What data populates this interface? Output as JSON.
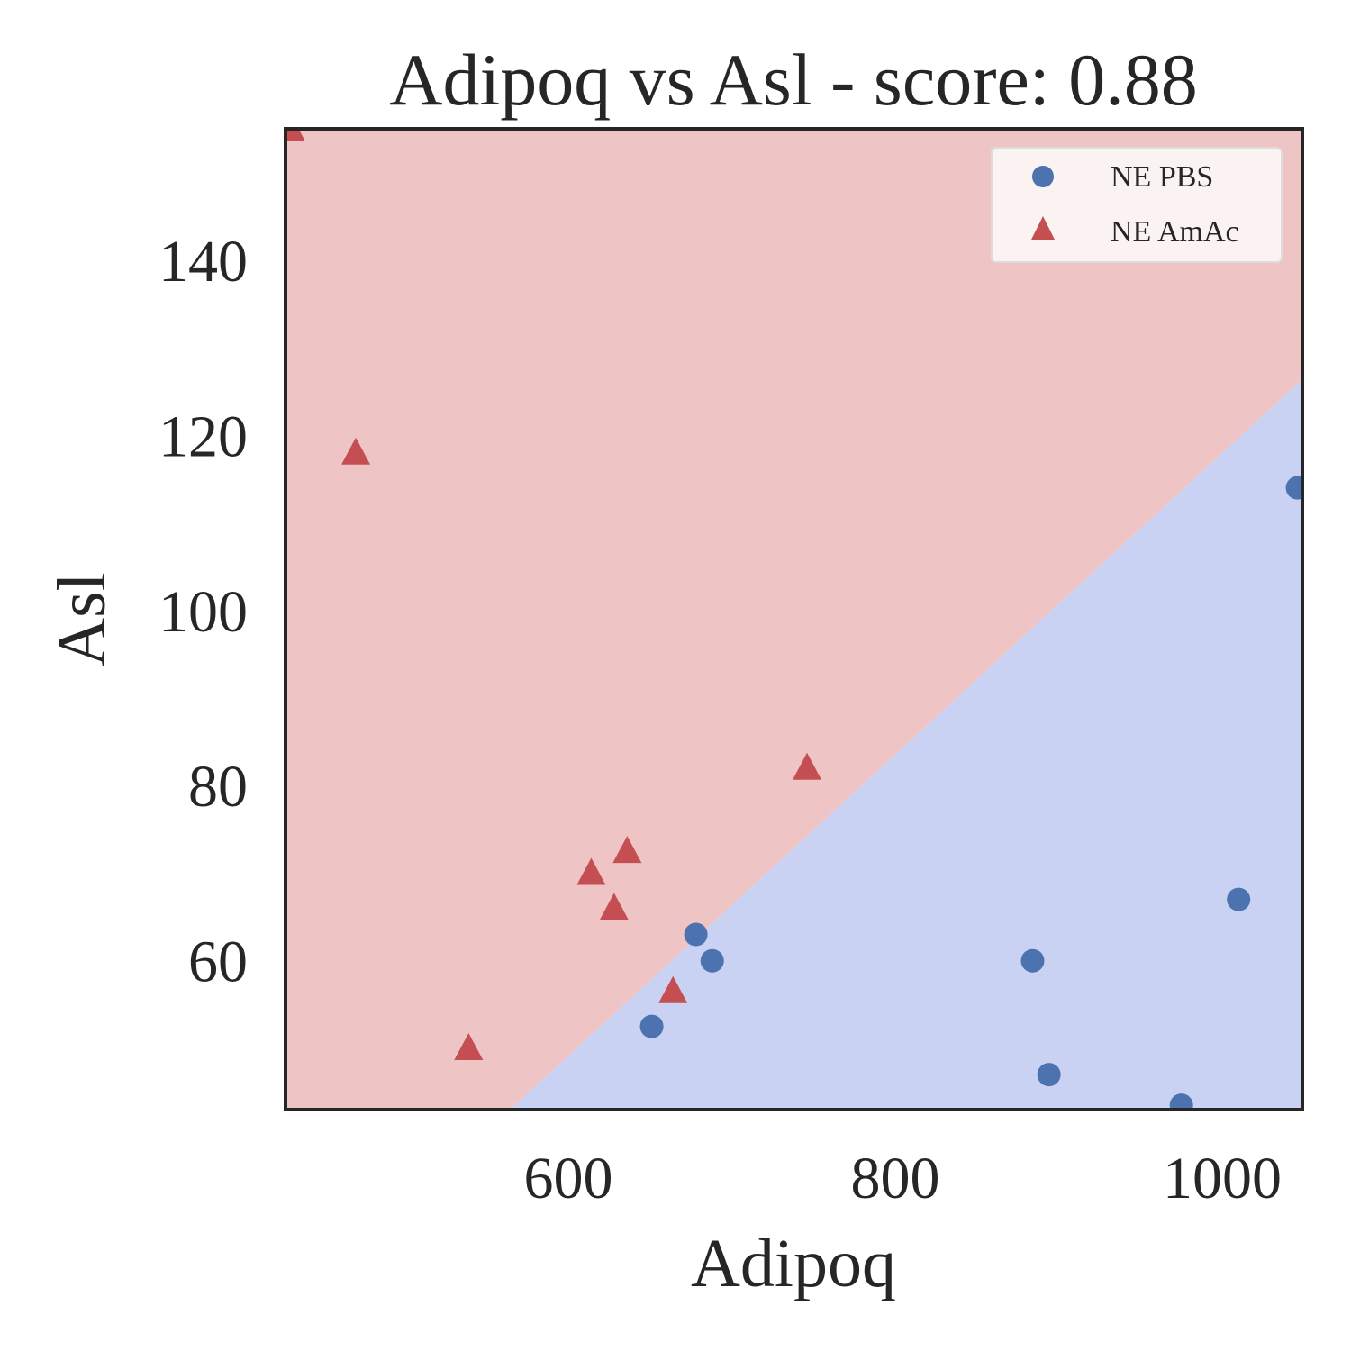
{
  "chart_data": {
    "type": "scatter",
    "title": "Adipoq vs Asl - score: 0.88",
    "xlabel": "Adipoq",
    "ylabel": "Asl",
    "xlim": [
      427,
      1049
    ],
    "ylim": [
      43,
      155
    ],
    "xticks": [
      600,
      800,
      1000
    ],
    "yticks": [
      60,
      80,
      100,
      120,
      140
    ],
    "grid": false,
    "legend_position": "top-right",
    "decision_boundary": {
      "points": [
        [
          564.4,
          43
        ],
        [
          1049,
          126.4
        ]
      ],
      "region_colors": {
        "NE AmAc": "#eec4c4",
        "NE PBS": "#c9d2f2"
      }
    },
    "series": [
      {
        "name": "NE PBS",
        "marker": "circle",
        "color": "#4c72b0",
        "points": [
          [
            1046,
            114
          ],
          [
            1010,
            67
          ],
          [
            884,
            60
          ],
          [
            894,
            47
          ],
          [
            975,
            43.5
          ],
          [
            678,
            63
          ],
          [
            688,
            60
          ],
          [
            651,
            52.5
          ]
        ]
      },
      {
        "name": "NE AmAc",
        "marker": "triangle",
        "color": "#c44e52",
        "points": [
          [
            430,
            155
          ],
          [
            470,
            118
          ],
          [
            539,
            50
          ],
          [
            614,
            70
          ],
          [
            628,
            66
          ],
          [
            636,
            72.5
          ],
          [
            664,
            56.5
          ],
          [
            746,
            82
          ]
        ]
      }
    ]
  }
}
